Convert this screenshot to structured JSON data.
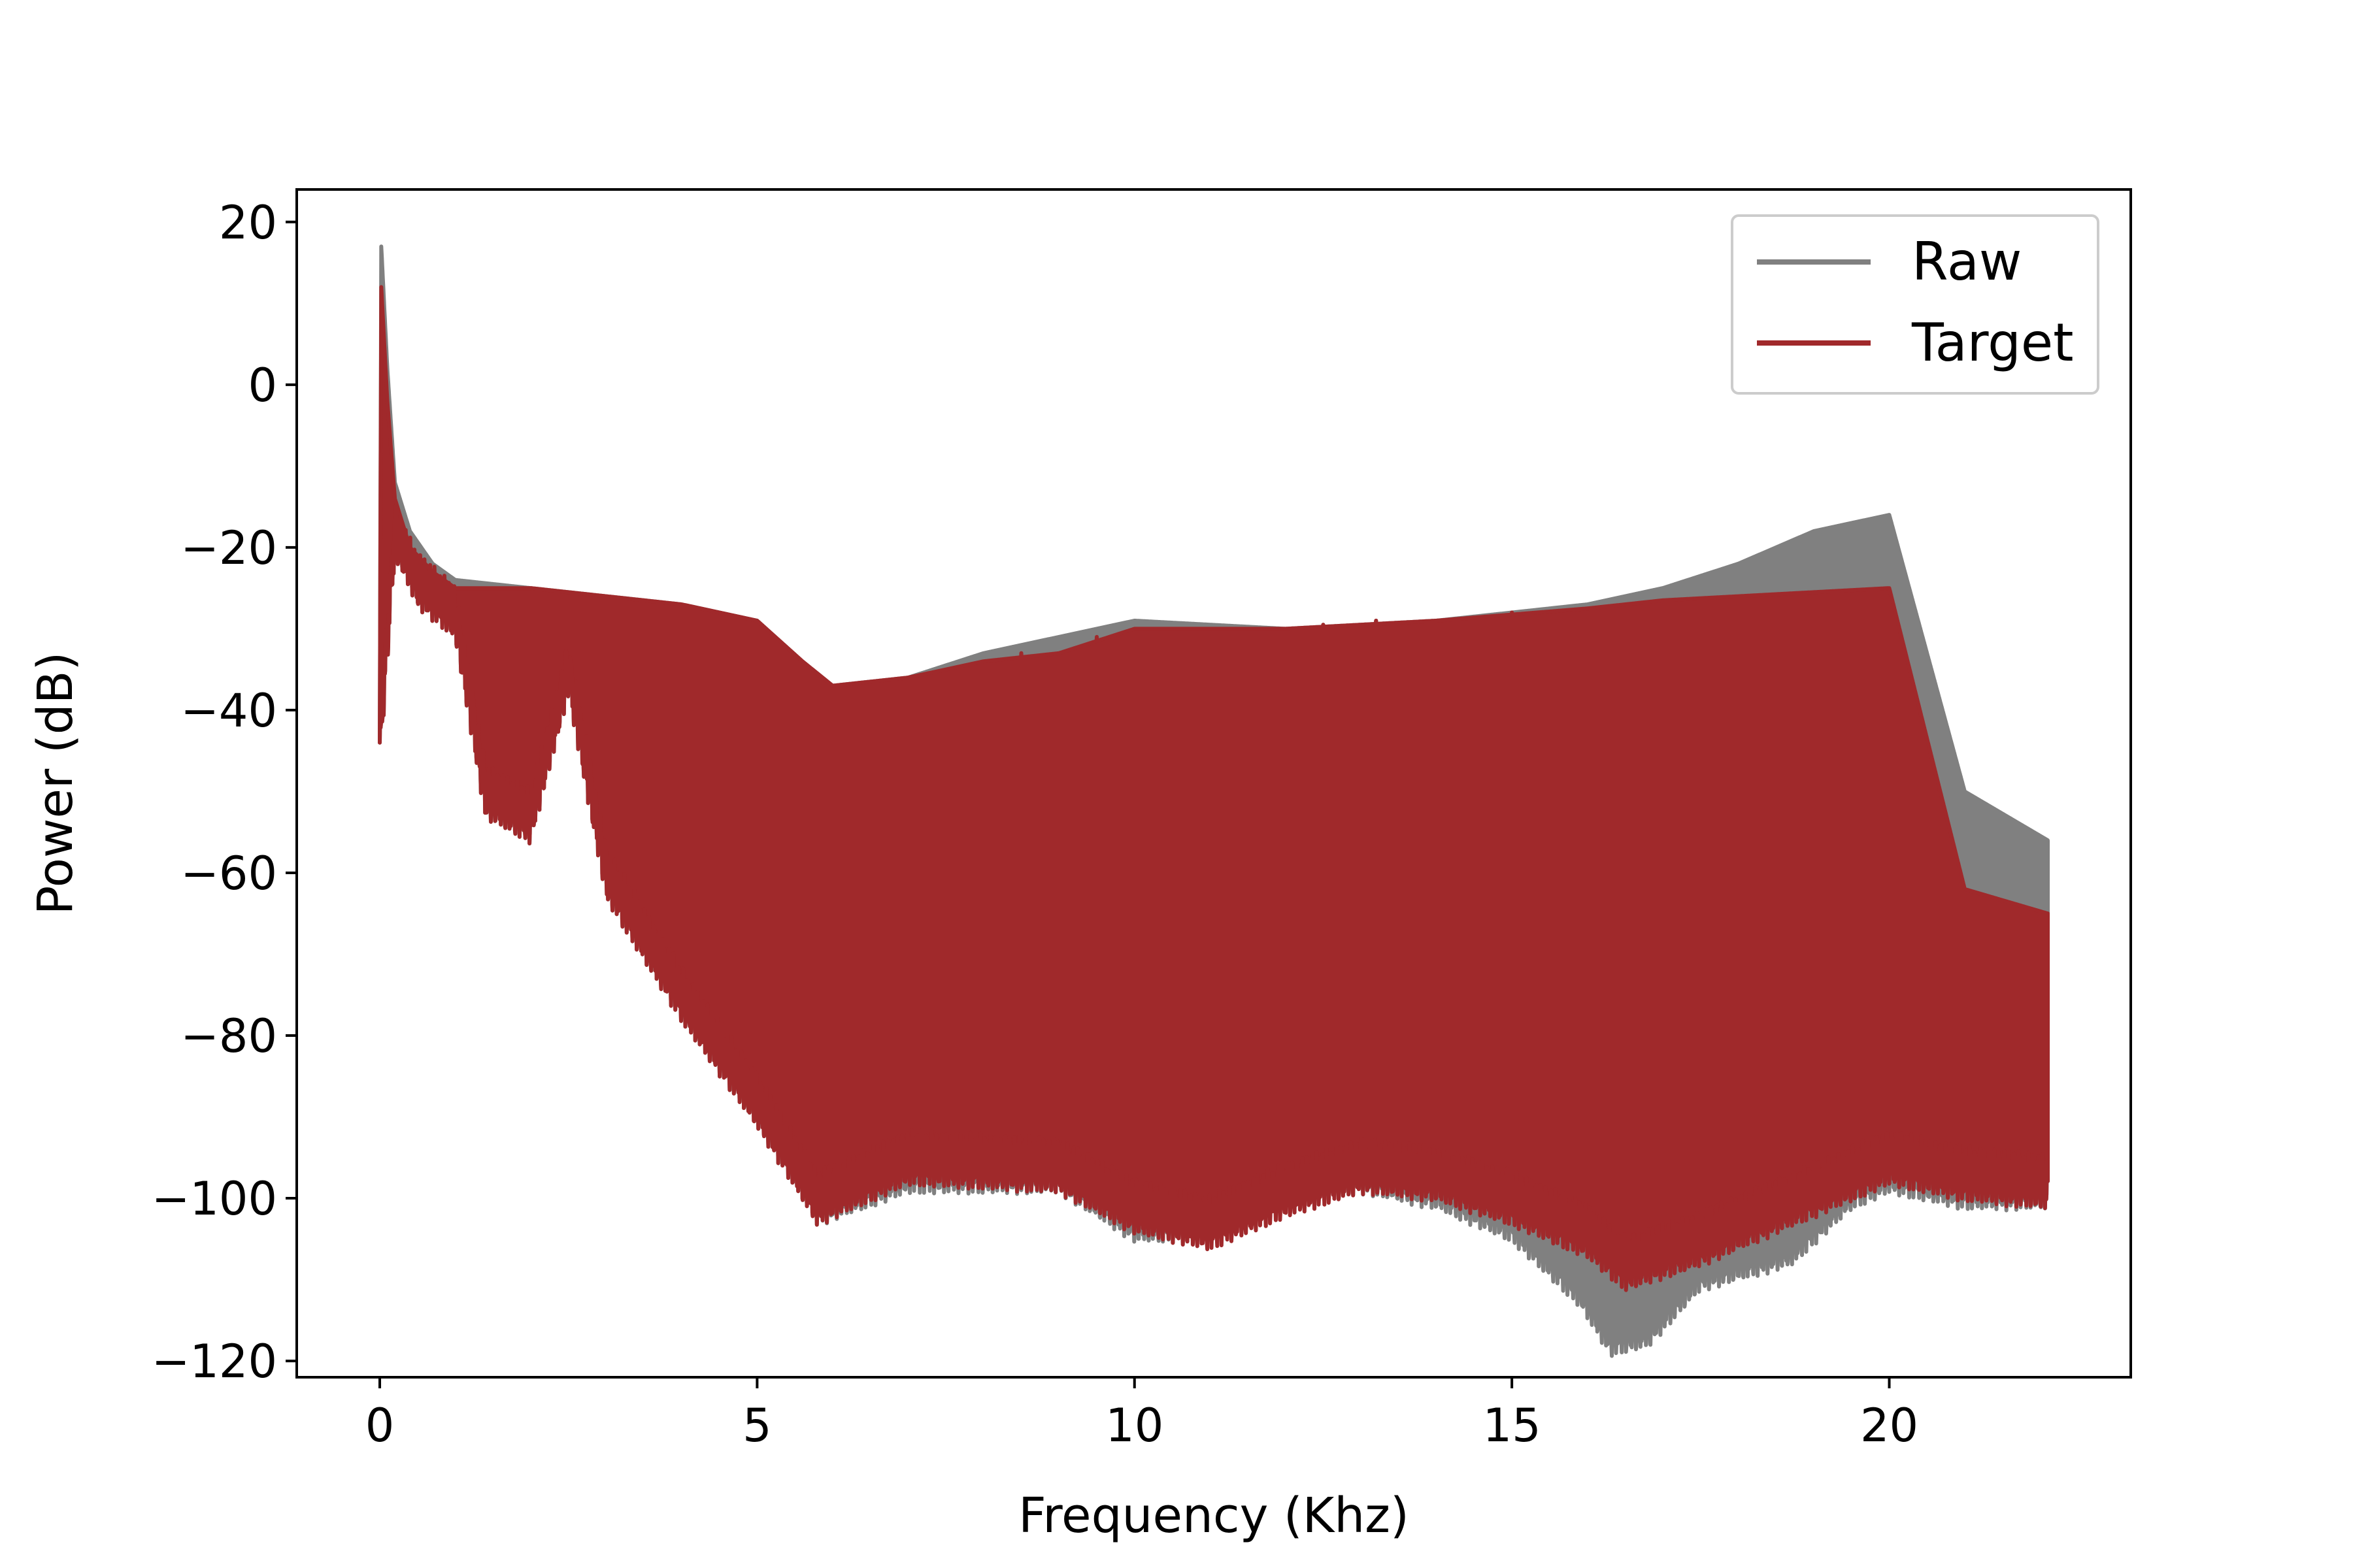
{
  "chart_data": {
    "type": "line",
    "title": "",
    "xlabel": "Frequency (Khz)",
    "ylabel": "Power (dB)",
    "xlim": [
      -1.1,
      23.2
    ],
    "ylim": [
      -122,
      24
    ],
    "x_ticks": [
      0,
      5,
      10,
      15,
      20
    ],
    "x_tick_labels": [
      "0",
      "5",
      "10",
      "15",
      "20"
    ],
    "y_ticks": [
      20,
      0,
      -20,
      -40,
      -60,
      -80,
      -100,
      -120
    ],
    "y_tick_labels": [
      "20",
      "0",
      "−20",
      "−40",
      "−60",
      "−80",
      "−100",
      "−120"
    ],
    "grid": false,
    "legend_position": "top-right",
    "series": [
      {
        "name": "Raw",
        "color": "#808080",
        "upper_envelope": [
          [
            0,
            -44
          ],
          [
            0.02,
            17
          ],
          [
            0.1,
            2
          ],
          [
            0.2,
            -12
          ],
          [
            0.4,
            -18
          ],
          [
            0.7,
            -22
          ],
          [
            1.0,
            -24
          ],
          [
            2.0,
            -25
          ],
          [
            3.0,
            -26
          ],
          [
            4.0,
            -27
          ],
          [
            5.0,
            -29
          ],
          [
            5.6,
            -34
          ],
          [
            6.0,
            -37
          ],
          [
            7.0,
            -36
          ],
          [
            8.0,
            -33
          ],
          [
            9.0,
            -31
          ],
          [
            10.0,
            -29
          ],
          [
            12.0,
            -30
          ],
          [
            14.0,
            -29
          ],
          [
            16.0,
            -27
          ],
          [
            17.0,
            -25
          ],
          [
            18.0,
            -22
          ],
          [
            19.0,
            -18
          ],
          [
            20.0,
            -16
          ],
          [
            21.0,
            -50
          ],
          [
            22.1,
            -56
          ]
        ],
        "lower_envelope": [
          [
            0,
            -44
          ],
          [
            0.2,
            -18
          ],
          [
            0.5,
            -24
          ],
          [
            1.0,
            -28
          ],
          [
            1.4,
            -50
          ],
          [
            2.0,
            -53
          ],
          [
            2.5,
            -35
          ],
          [
            3.0,
            -60
          ],
          [
            4.0,
            -75
          ],
          [
            5.0,
            -88
          ],
          [
            5.8,
            -100
          ],
          [
            7.0,
            -96
          ],
          [
            9.0,
            -96
          ],
          [
            10.0,
            -102
          ],
          [
            11.0,
            -102
          ],
          [
            12.0,
            -98
          ],
          [
            13.0,
            -96
          ],
          [
            14.0,
            -98
          ],
          [
            15.0,
            -102
          ],
          [
            15.9,
            -110
          ],
          [
            16.3,
            -116
          ],
          [
            16.8,
            -115
          ],
          [
            17.5,
            -108
          ],
          [
            18.7,
            -105
          ],
          [
            19.5,
            -98
          ],
          [
            20.0,
            -96
          ],
          [
            21.0,
            -98
          ],
          [
            22.1,
            -98
          ]
        ],
        "peaks": [
          [
            7.0,
            -36
          ],
          [
            7.5,
            -35
          ],
          [
            8.0,
            -33
          ],
          [
            8.5,
            -32
          ],
          [
            9.0,
            -31
          ],
          [
            9.5,
            -30
          ],
          [
            10.0,
            -29
          ],
          [
            10.6,
            -29.5
          ],
          [
            11.2,
            -30
          ],
          [
            11.8,
            -30
          ],
          [
            12.5,
            -29.5
          ],
          [
            13.2,
            -29
          ],
          [
            14.0,
            -29
          ],
          [
            15.0,
            -28
          ],
          [
            16.0,
            -27
          ],
          [
            17.0,
            -25
          ],
          [
            18.0,
            -22
          ],
          [
            19.0,
            -18.5
          ],
          [
            20.0,
            -16
          ]
        ]
      },
      {
        "name": "Target",
        "color": "#a0292b",
        "upper_envelope": [
          [
            0,
            -44
          ],
          [
            0.02,
            12
          ],
          [
            0.1,
            -2
          ],
          [
            0.2,
            -14
          ],
          [
            0.4,
            -20
          ],
          [
            0.7,
            -23
          ],
          [
            1.0,
            -25
          ],
          [
            2.0,
            -25
          ],
          [
            3.0,
            -26
          ],
          [
            4.0,
            -27
          ],
          [
            5.0,
            -29
          ],
          [
            5.6,
            -34
          ],
          [
            6.0,
            -37
          ],
          [
            7.0,
            -36
          ],
          [
            8.0,
            -34
          ],
          [
            9.0,
            -33
          ],
          [
            10.0,
            -30
          ],
          [
            12.0,
            -30
          ],
          [
            14.0,
            -29
          ],
          [
            16.0,
            -27.5
          ],
          [
            17.0,
            -26.5
          ],
          [
            18.0,
            -26
          ],
          [
            19.0,
            -25.5
          ],
          [
            20.0,
            -25
          ],
          [
            21.0,
            -62
          ],
          [
            22.1,
            -65
          ]
        ],
        "lower_envelope": [
          [
            0,
            -44
          ],
          [
            0.2,
            -18
          ],
          [
            0.5,
            -24
          ],
          [
            1.0,
            -28
          ],
          [
            1.4,
            -50
          ],
          [
            2.0,
            -53
          ],
          [
            2.5,
            -35
          ],
          [
            3.0,
            -60
          ],
          [
            4.0,
            -75
          ],
          [
            5.0,
            -88
          ],
          [
            5.8,
            -100
          ],
          [
            7.0,
            -95
          ],
          [
            9.0,
            -96
          ],
          [
            10.0,
            -101
          ],
          [
            11.0,
            -103
          ],
          [
            12.0,
            -99
          ],
          [
            13.0,
            -96
          ],
          [
            14.0,
            -97
          ],
          [
            15.0,
            -100
          ],
          [
            16.0,
            -104
          ],
          [
            16.5,
            -108
          ],
          [
            17.5,
            -105
          ],
          [
            18.5,
            -101
          ],
          [
            19.5,
            -97
          ],
          [
            20.0,
            -95
          ],
          [
            21.0,
            -97
          ],
          [
            22.1,
            -98
          ]
        ],
        "peaks": [
          [
            7.0,
            -36
          ],
          [
            7.5,
            -35
          ],
          [
            8.0,
            -34
          ],
          [
            8.5,
            -33
          ],
          [
            9.0,
            -33
          ],
          [
            9.5,
            -31
          ],
          [
            10.0,
            -30
          ],
          [
            10.6,
            -30
          ],
          [
            11.2,
            -30
          ],
          [
            11.8,
            -30
          ],
          [
            12.5,
            -29.5
          ],
          [
            13.2,
            -29
          ],
          [
            14.0,
            -29
          ],
          [
            15.0,
            -28
          ],
          [
            16.0,
            -27.5
          ],
          [
            17.0,
            -26.5
          ],
          [
            18.0,
            -26
          ],
          [
            19.0,
            -25.5
          ],
          [
            20.0,
            -25
          ]
        ]
      }
    ]
  }
}
